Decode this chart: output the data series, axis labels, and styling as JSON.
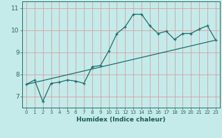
{
  "title": "",
  "xlabel": "Humidex (Indice chaleur)",
  "bg_color": "#c5eaea",
  "line_color": "#1a6e6a",
  "grid_color": "#d4a0a0",
  "xlim": [
    -0.5,
    23.5
  ],
  "ylim": [
    6.5,
    11.3
  ],
  "xticks": [
    0,
    1,
    2,
    3,
    4,
    5,
    6,
    7,
    8,
    9,
    10,
    11,
    12,
    13,
    14,
    15,
    16,
    17,
    18,
    19,
    20,
    21,
    22,
    23
  ],
  "yticks": [
    7,
    8,
    9,
    10,
    11
  ],
  "marker_x": [
    0,
    1,
    2,
    3,
    4,
    5,
    6,
    7,
    8,
    9,
    10,
    11,
    12,
    13,
    14,
    15,
    16,
    17,
    18,
    19,
    20,
    21,
    22,
    23
  ],
  "marker_y": [
    7.55,
    7.75,
    6.78,
    7.6,
    7.65,
    7.75,
    7.7,
    7.6,
    8.35,
    8.4,
    9.05,
    9.85,
    10.15,
    10.72,
    10.72,
    10.2,
    9.85,
    9.95,
    9.58,
    9.85,
    9.85,
    10.05,
    10.2,
    9.55
  ],
  "trend_x": [
    0,
    23
  ],
  "trend_y": [
    7.55,
    9.55
  ]
}
